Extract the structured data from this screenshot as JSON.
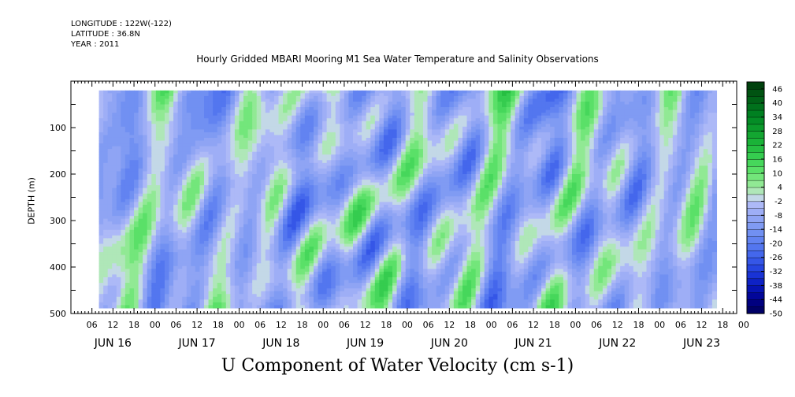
{
  "header": {
    "longitude": "LONGITUDE : 122W(-122)",
    "latitude": "LATITUDE : 36.8N",
    "year": "YEAR : 2011"
  },
  "chart_data": {
    "type": "heatmap",
    "title": "Hourly Gridded MBARI Mooring M1 Sea Water Temperature and Salinity Observations",
    "xlabel": "U Component of Water Velocity (cm s-1)",
    "ylabel": "DEPTH (m)",
    "x_hour_ticks": [
      "06",
      "12",
      "18",
      "00",
      "06",
      "12",
      "18",
      "00",
      "06",
      "12",
      "18",
      "00",
      "06",
      "12",
      "18",
      "00",
      "06",
      "12",
      "18",
      "00",
      "06",
      "12",
      "18",
      "00",
      "06",
      "12",
      "18",
      "00",
      "06",
      "12",
      "18",
      "00"
    ],
    "x_day_labels": [
      "JUN 16",
      "JUN 17",
      "JUN 18",
      "JUN 19",
      "JUN 20",
      "JUN 21",
      "JUN 22",
      "JUN 23"
    ],
    "x_range_hours": [
      0,
      190
    ],
    "data_x_range_hours": [
      8,
      184
    ],
    "y_ticks": [
      100,
      200,
      300,
      400,
      500
    ],
    "y_range": [
      0,
      500
    ],
    "data_depth_range": [
      20,
      485
    ],
    "colorbar_ticks": [
      46,
      40,
      34,
      28,
      22,
      16,
      10,
      4,
      -2,
      -8,
      -14,
      -20,
      -26,
      -32,
      -38,
      -44,
      -50
    ],
    "colorbar_range": [
      -50,
      49
    ],
    "colorbar_step": 3,
    "typical_value_range": [
      -30,
      20
    ]
  }
}
